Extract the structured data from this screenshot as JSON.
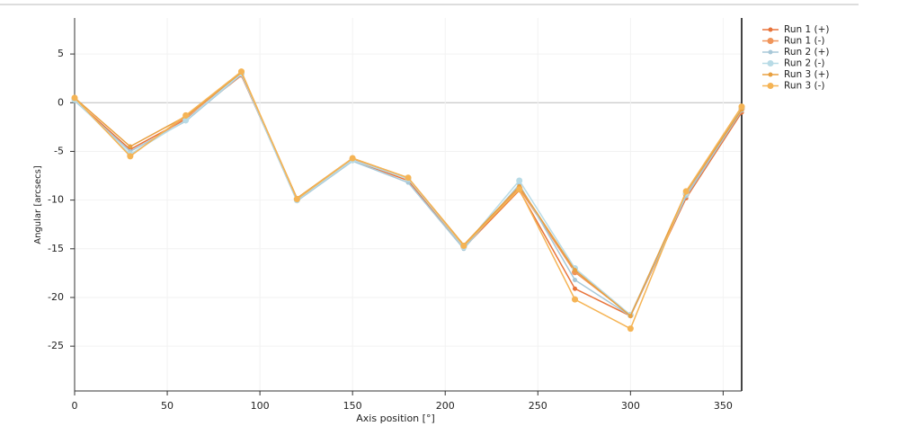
{
  "chart_data": {
    "type": "line",
    "x_label": "Axis position [°]",
    "y_label": "Angular [arcsecs]",
    "x": [
      0,
      30,
      60,
      90,
      120,
      150,
      180,
      210,
      240,
      270,
      300,
      330,
      360
    ],
    "series": [
      {
        "name": "Run 1 (+)",
        "color": "#e8743b",
        "values": [
          0.3,
          -4.8,
          -1.7,
          2.8,
          -9.9,
          -5.9,
          -8.0,
          -14.9,
          -9.0,
          -19.1,
          -21.9,
          -9.8,
          -1.0
        ]
      },
      {
        "name": "Run 1 (-)",
        "color": "#f0955a",
        "values": [
          0.4,
          -5.4,
          -1.5,
          3.0,
          -9.9,
          -5.8,
          -7.8,
          -14.8,
          -8.8,
          -17.4,
          -21.8,
          -9.4,
          -0.6
        ]
      },
      {
        "name": "Run 2 (+)",
        "color": "#a8c8d8",
        "values": [
          0.2,
          -5.0,
          -1.9,
          2.9,
          -10.1,
          -6.0,
          -8.2,
          -15.0,
          -8.4,
          -18.2,
          -21.9,
          -9.6,
          -0.8
        ]
      },
      {
        "name": "Run 2 (-)",
        "color": "#b8dbe6",
        "values": [
          0.3,
          -5.3,
          -1.8,
          3.0,
          -10.0,
          -5.9,
          -7.8,
          -14.8,
          -8.0,
          -17.0,
          -21.8,
          -9.3,
          -0.5
        ]
      },
      {
        "name": "Run 3 (+)",
        "color": "#e8a040",
        "values": [
          0.5,
          -4.5,
          -1.4,
          3.1,
          -9.8,
          -5.7,
          -7.7,
          -14.6,
          -8.6,
          -17.2,
          -21.9,
          -9.2,
          -0.7
        ]
      },
      {
        "name": "Run 3 (-)",
        "color": "#f5b455",
        "values": [
          0.5,
          -5.5,
          -1.3,
          3.2,
          -9.9,
          -5.7,
          -7.7,
          -14.7,
          -8.9,
          -20.2,
          -23.2,
          -9.1,
          -0.4
        ]
      }
    ],
    "xlim": [
      0,
      360
    ],
    "xticks": [
      0,
      50,
      100,
      150,
      200,
      250,
      300,
      350
    ],
    "ylim": [
      -29.6,
      8.7
    ],
    "yticks": [
      5,
      0,
      -5,
      -10,
      -15,
      -20,
      -25
    ],
    "grid": true,
    "legend": "right"
  }
}
